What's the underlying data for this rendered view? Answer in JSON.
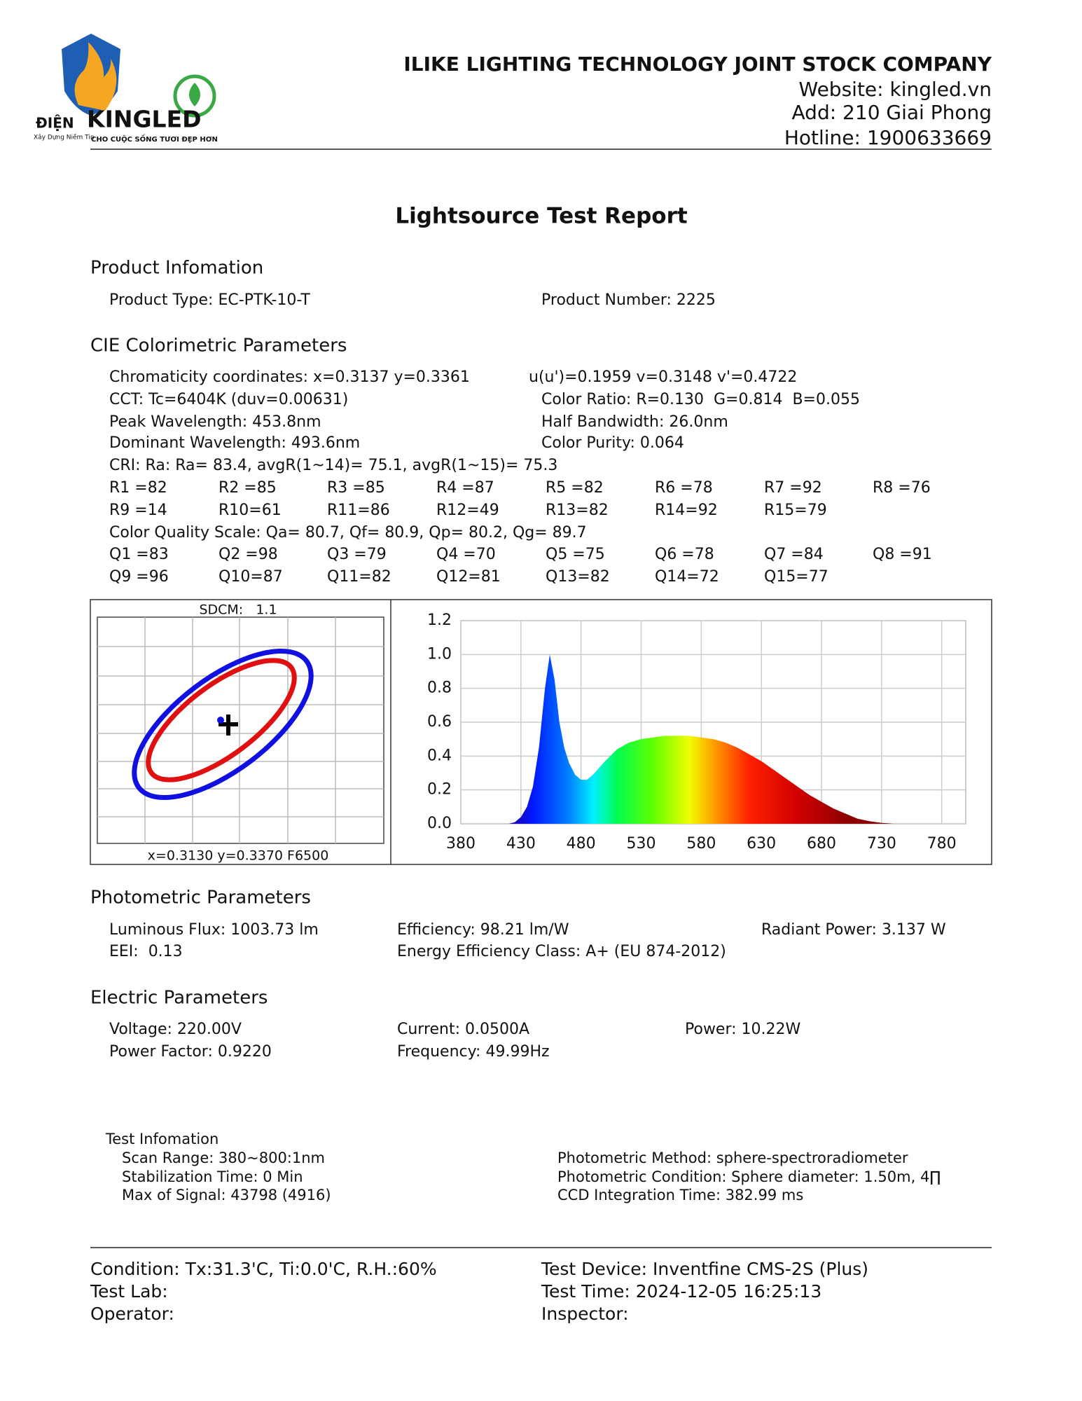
{
  "header": {
    "logo_left": "ĐIỆN",
    "logo_brand": "KINGLED",
    "logo_slogan": "Xây Dựng Niềm Tin",
    "logo_tagline": "CHO CUỘC SỐNG TƯƠI ĐẸP HƠN",
    "company": "ILIKE LIGHTING TECHNOLOGY JOINT STOCK COMPANY",
    "website": "Website: kingled.vn",
    "address": "Add: 210 Giai Phong",
    "hotline": "Hotline: 1900633669"
  },
  "title": "Lightsource Test Report",
  "product": {
    "heading": "Product Infomation",
    "type": "Product Type: EC-PTK-10-T",
    "number": "Product Number: 2225"
  },
  "cie": {
    "heading": "CIE Colorimetric Parameters",
    "chromaticity": "Chromaticity coordinates: x=0.3137 y=0.3361",
    "uv": "u(u')=0.1959 v=0.3148 v'=0.4722",
    "cct": "CCT: Tc=6404K (duv=0.00631)",
    "color_ratio": "Color Ratio: R=0.130  G=0.814  B=0.055",
    "peak": "Peak Wavelength: 453.8nm",
    "half_bandwidth": "Half Bandwidth: 26.0nm",
    "dominant": "Dominant Wavelength: 493.6nm",
    "purity": "Color Purity: 0.064",
    "cri": "CRI: Ra: Ra= 83.4, avgR(1~14)= 75.1, avgR(1~15)= 75.3",
    "r_values": [
      "R1 =82",
      "R2 =85",
      "R3 =85",
      "R4 =87",
      "R5 =82",
      "R6 =78",
      "R7 =92",
      "R8 =76",
      "R9 =14",
      "R10=61",
      "R11=86",
      "R12=49",
      "R13=82",
      "R14=92",
      "R15=79"
    ],
    "cqs": "Color Quality Scale: Qa= 80.7, Qf= 80.9, Qp= 80.2, Qg= 89.7",
    "q_values": [
      "Q1 =83",
      "Q2 =98",
      "Q3 =79",
      "Q4 =70",
      "Q5 =75",
      "Q6 =78",
      "Q7 =84",
      "Q8 =91",
      "Q9 =96",
      "Q10=87",
      "Q11=82",
      "Q12=81",
      "Q13=82",
      "Q14=72",
      "Q15=77"
    ]
  },
  "chromaticity_diagram": {
    "sdcm": "SDCM:   1.1",
    "reference": "x=0.3130 y=0.3370 F6500"
  },
  "chart_data": {
    "type": "area",
    "x": [
      420,
      425,
      430,
      435,
      440,
      445,
      450,
      454,
      458,
      462,
      466,
      470,
      475,
      480,
      485,
      490,
      500,
      510,
      520,
      530,
      540,
      550,
      560,
      570,
      580,
      590,
      600,
      610,
      620,
      630,
      640,
      650,
      660,
      670,
      680,
      690,
      700,
      710,
      720,
      730,
      740
    ],
    "values": [
      0,
      0.01,
      0.04,
      0.1,
      0.22,
      0.45,
      0.8,
      1.0,
      0.85,
      0.6,
      0.45,
      0.36,
      0.29,
      0.26,
      0.26,
      0.29,
      0.37,
      0.44,
      0.48,
      0.5,
      0.51,
      0.52,
      0.52,
      0.52,
      0.51,
      0.5,
      0.48,
      0.45,
      0.41,
      0.37,
      0.32,
      0.27,
      0.22,
      0.17,
      0.13,
      0.09,
      0.06,
      0.03,
      0.015,
      0.005,
      0
    ],
    "xlim": [
      380,
      800
    ],
    "xticks": [
      380,
      430,
      480,
      530,
      580,
      630,
      680,
      730,
      780
    ],
    "ylim": [
      0,
      1.2
    ],
    "yticks": [
      {
        "value": 0,
        "label": "0.0"
      },
      0.2,
      0.4,
      0.6,
      0.8,
      {
        "value": 1,
        "label": "1.0"
      },
      1.2
    ],
    "grid": true
  },
  "photometric": {
    "heading": "Photometric Parameters",
    "flux": "Luminous Flux: 1003.73 lm",
    "efficiency": "Efficiency: 98.21 lm/W",
    "radiant": "Radiant Power: 3.137 W",
    "eei": "EEI:  0.13",
    "energy_class": "Energy Efficiency Class: A+ (EU 874-2012)"
  },
  "electric": {
    "heading": "Electric Parameters",
    "voltage": "Voltage: 220.00V",
    "current": "Current: 0.0500A",
    "power": "Power: 10.22W",
    "power_factor": "Power Factor: 0.9220",
    "frequency": "Frequency: 49.99Hz"
  },
  "test_info": {
    "heading": "Test Infomation",
    "scan_range": "Scan Range: 380~800:1nm",
    "stabilization": "Stabilization Time: 0 Min",
    "max_signal": "Max of Signal: 43798 (4916)",
    "method": "Photometric Method: sphere-spectroradiometer",
    "condition": "Photometric Condition: Sphere diameter: 1.50m, 4∏",
    "ccd": "CCD Integration Time: 382.99 ms"
  },
  "footer": {
    "condition": "Condition: Tx:31.3'C, Ti:0.0'C, R.H.:60%",
    "lab": "Test Lab:",
    "operator": "Operator:",
    "device": "Test Device: Inventfine CMS-2S (Plus)",
    "time": "Test Time: 2024-12-05 16:25:13",
    "inspector": "Inspector:"
  }
}
